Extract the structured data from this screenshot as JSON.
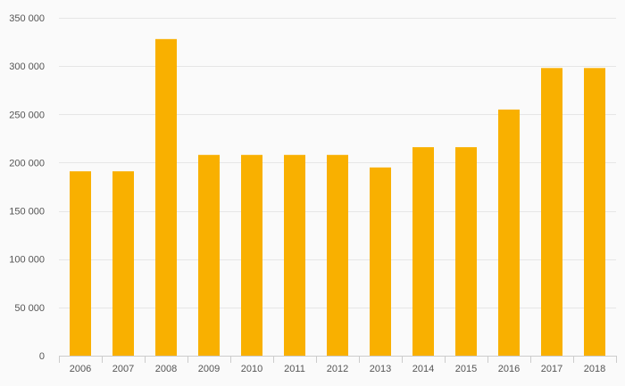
{
  "chart_data": {
    "type": "bar",
    "title": "",
    "xlabel": "",
    "ylabel": "",
    "categories": [
      "2006",
      "2007",
      "2008",
      "2009",
      "2010",
      "2011",
      "2012",
      "2013",
      "2014",
      "2015",
      "2016",
      "2017",
      "2018"
    ],
    "values": [
      191000,
      191000,
      328000,
      208000,
      208000,
      208000,
      208000,
      195000,
      216000,
      216000,
      255000,
      298000,
      298000
    ],
    "ylim": [
      0,
      350000
    ],
    "yticks": [
      0,
      50000,
      100000,
      150000,
      200000,
      250000,
      300000,
      350000
    ],
    "ytick_labels": [
      "0",
      "50 000",
      "100 000",
      "150 000",
      "200 000",
      "250 000",
      "300 000",
      "350 000"
    ],
    "grid": true,
    "legend": "none",
    "colors": {
      "bar": "#f9b000",
      "background": "#fafafa",
      "grid": "#e6e6e6",
      "axis": "#cccccc",
      "text": "#555555"
    }
  }
}
